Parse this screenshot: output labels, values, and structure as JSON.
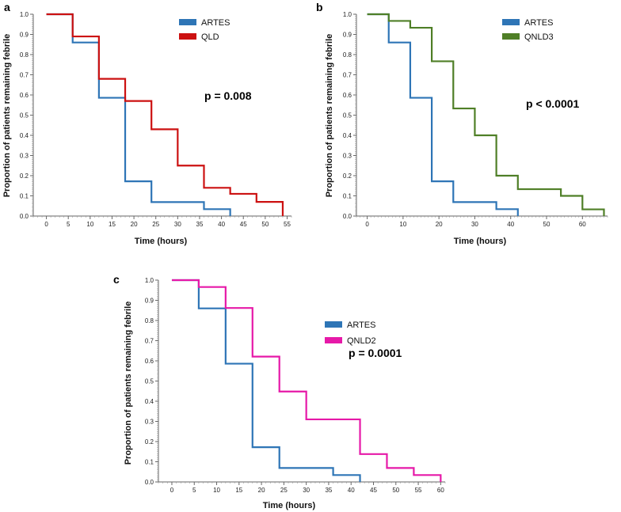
{
  "chart_data": [
    {
      "type": "line",
      "panel_label": "a",
      "xlabel": "Time (hours)",
      "ylabel": "Proportion of patients remaining febrile",
      "xlim": [
        -3,
        56
      ],
      "ylim": [
        0,
        1.0
      ],
      "xticks": [
        0,
        5,
        10,
        15,
        20,
        25,
        30,
        35,
        40,
        45,
        50,
        55
      ],
      "yticks": [
        "0.0",
        "0.1",
        "0.2",
        "0.3",
        "0.4",
        "0.5",
        "0.6",
        "0.7",
        "0.8",
        "0.9",
        "1.0"
      ],
      "annotation": "p = 0.008",
      "series": [
        {
          "name": "ARTES",
          "color": "#2e75b6",
          "x": [
            0,
            6,
            12,
            18,
            24,
            36,
            42
          ],
          "y": [
            1.0,
            0.86,
            0.586,
            0.172,
            0.069,
            0.034,
            0.0
          ]
        },
        {
          "name": "QLD",
          "color": "#cc1111",
          "x": [
            0,
            6,
            12,
            18,
            24,
            30,
            36,
            42,
            48,
            54
          ],
          "y": [
            1.0,
            0.89,
            0.68,
            0.57,
            0.43,
            0.25,
            0.14,
            0.11,
            0.07,
            0.0
          ]
        }
      ]
    },
    {
      "type": "line",
      "panel_label": "b",
      "xlabel": "Time (hours)",
      "ylabel": "Proportion of patients remaining febrile",
      "xlim": [
        -3,
        67
      ],
      "ylim": [
        0,
        1.0
      ],
      "xticks": [
        0,
        10,
        20,
        30,
        40,
        50,
        60
      ],
      "yticks": [
        "0.0",
        "0.1",
        "0.2",
        "0.3",
        "0.4",
        "0.5",
        "0.6",
        "0.7",
        "0.8",
        "0.9",
        "1.0"
      ],
      "annotation": "p < 0.0001",
      "series": [
        {
          "name": "ARTES",
          "color": "#2e75b6",
          "x": [
            0,
            6,
            12,
            18,
            24,
            36,
            42
          ],
          "y": [
            1.0,
            0.86,
            0.586,
            0.172,
            0.069,
            0.034,
            0.0
          ]
        },
        {
          "name": "QNLD3",
          "color": "#4f7f27",
          "x": [
            0,
            6,
            12,
            18,
            24,
            30,
            36,
            42,
            54,
            60,
            66
          ],
          "y": [
            1.0,
            0.967,
            0.933,
            0.767,
            0.533,
            0.4,
            0.2,
            0.133,
            0.1,
            0.033,
            0.0
          ]
        }
      ]
    },
    {
      "type": "line",
      "panel_label": "c",
      "xlabel": "Time (hours)",
      "ylabel": "Proportion of patients remaining febrile",
      "xlim": [
        -3,
        61
      ],
      "ylim": [
        0,
        1.0
      ],
      "xticks": [
        0,
        5,
        10,
        15,
        20,
        25,
        30,
        35,
        40,
        45,
        50,
        55,
        60
      ],
      "yticks": [
        "0.0",
        "0.1",
        "0.2",
        "0.3",
        "0.4",
        "0.5",
        "0.6",
        "0.7",
        "0.8",
        "0.9",
        "1.0"
      ],
      "annotation": "p = 0.0001",
      "series": [
        {
          "name": "ARTES",
          "color": "#2e75b6",
          "x": [
            0,
            6,
            12,
            18,
            24,
            36,
            42
          ],
          "y": [
            1.0,
            0.86,
            0.586,
            0.172,
            0.069,
            0.034,
            0.0
          ]
        },
        {
          "name": "QNLD2",
          "color": "#e619a8",
          "x": [
            0,
            6,
            12,
            18,
            24,
            30,
            42,
            48,
            54,
            60
          ],
          "y": [
            1.0,
            0.966,
            0.862,
            0.621,
            0.448,
            0.31,
            0.138,
            0.069,
            0.034,
            0.0
          ]
        }
      ]
    }
  ]
}
